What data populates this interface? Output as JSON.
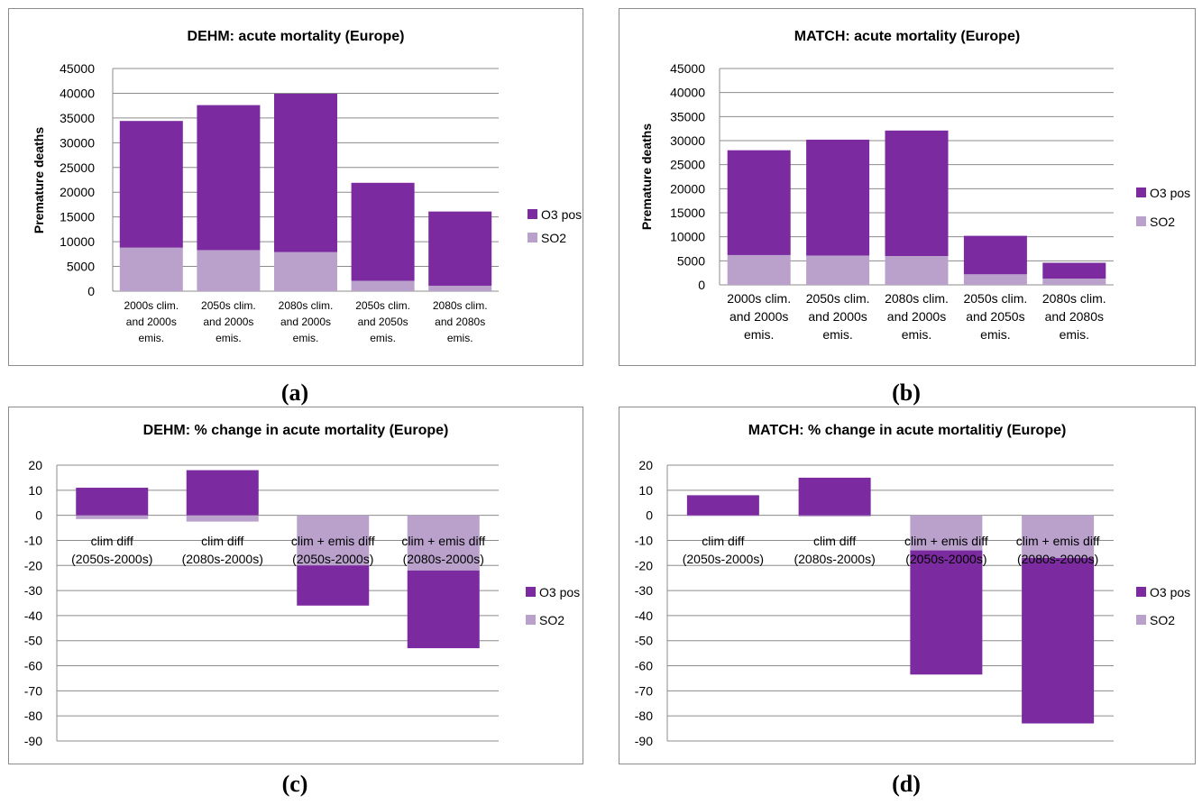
{
  "chart_data": [
    {
      "type": "bar",
      "stacked": true,
      "title": "DEHM: acute mortality (Europe)",
      "ylabel": "Premature deaths",
      "xlabel": "",
      "ylim": [
        0,
        45000
      ],
      "ytick_step": 5000,
      "categories": [
        "2000s clim.\nand 2000s\nemis.",
        "2050s clim.\nand 2000s\nemis.",
        "2080s clim.\nand 2000s\nemis.",
        "2050s clim.\nand 2050s\nemis.",
        "2080s clim.\nand 2080s\nemis."
      ],
      "series": [
        {
          "name": "SO2",
          "color": "#b9a1cc",
          "values": [
            8800,
            8300,
            7900,
            2100,
            1100
          ]
        },
        {
          "name": "O3 pos",
          "color": "#7b2aa0",
          "values": [
            25600,
            29300,
            32000,
            19800,
            15000
          ]
        }
      ],
      "legend": "right",
      "grid": true
    },
    {
      "type": "bar",
      "stacked": true,
      "title": "MATCH: acute mortality (Europe)",
      "ylabel": "Premature deaths",
      "xlabel": "",
      "ylim": [
        0,
        45000
      ],
      "ytick_step": 5000,
      "categories": [
        "2000s clim.\nand 2000s\nemis.",
        "2050s clim.\nand 2000s\nemis.",
        "2080s clim.\nand 2000s\nemis.",
        "2050s clim.\nand 2050s\nemis.",
        "2080s clim.\nand 2080s\nemis."
      ],
      "series": [
        {
          "name": "SO2",
          "color": "#b9a1cc",
          "values": [
            6200,
            6100,
            6000,
            2200,
            1300
          ]
        },
        {
          "name": "O3 pos",
          "color": "#7b2aa0",
          "values": [
            21800,
            24100,
            26100,
            8000,
            3300
          ]
        }
      ],
      "legend": "right",
      "grid": true
    },
    {
      "type": "bar",
      "stacked": true,
      "title": "DEHM: % change in acute mortality (Europe)",
      "ylabel": "",
      "xlabel": "",
      "ylim": [
        -90,
        20
      ],
      "ytick_step": 10,
      "categories": [
        "clim diff\n(2050s-2000s)",
        "clim diff\n(2080s-2000s)",
        "clim + emis diff\n(2050s-2000s)",
        "clim + emis diff\n(2080s-2000s)"
      ],
      "series": [
        {
          "name": "SO2",
          "color": "#b9a1cc",
          "values": [
            -1.5,
            -2.5,
            -20,
            -22
          ]
        },
        {
          "name": "O3 pos",
          "color": "#7b2aa0",
          "values": [
            11,
            18,
            -16,
            -31
          ]
        }
      ],
      "legend": "right",
      "grid": true
    },
    {
      "type": "bar",
      "stacked": true,
      "title": "MATCH: % change in acute mortalitiy (Europe)",
      "ylabel": "",
      "xlabel": "",
      "ylim": [
        -90,
        20
      ],
      "ytick_step": 10,
      "categories": [
        "clim diff\n(2050s-2000s)",
        "clim diff\n(2080s-2000s)",
        "clim + emis diff\n(2050s-2000s)",
        "clim + emis diff\n(2080s-2000s)"
      ],
      "series": [
        {
          "name": "SO2",
          "color": "#b9a1cc",
          "values": [
            -0.3,
            -0.5,
            -14,
            -17
          ]
        },
        {
          "name": "O3 pos",
          "color": "#7b2aa0",
          "values": [
            8,
            15,
            -49.5,
            -66
          ]
        }
      ],
      "legend": "right",
      "grid": true
    }
  ],
  "sublabels": [
    "(a)",
    "(b)",
    "(c)",
    "(d)"
  ]
}
